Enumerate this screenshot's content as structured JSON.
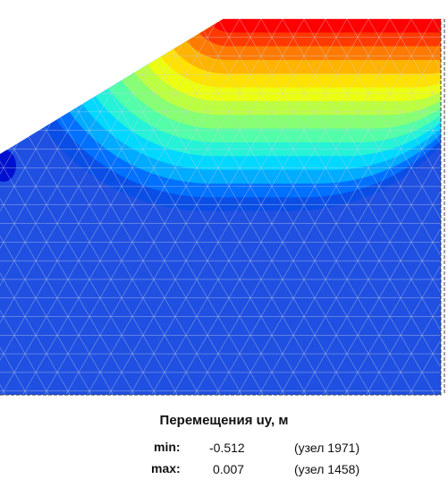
{
  "legend": {
    "title": "Перемещения uy, м",
    "min_label": "min:",
    "min_value": "-0.512",
    "min_node": "(узел 1971)",
    "max_label": "max:",
    "max_value": "0.007",
    "max_node": "(узел 1458)"
  },
  "colors": {
    "bands": [
      "#ff0000",
      "#ff3a00",
      "#ff7a00",
      "#ffb400",
      "#ffe200",
      "#ecff10",
      "#bcff40",
      "#86ff74",
      "#52ffa8",
      "#26f2d8",
      "#00d8ff",
      "#00acff",
      "#0070ff",
      "#0a4ee6",
      "#2050e2"
    ],
    "background_field": "#2050e2",
    "local_spot": "#0010d0",
    "mesh_lines": "#c8d0dc",
    "boundary": "#404040"
  }
}
